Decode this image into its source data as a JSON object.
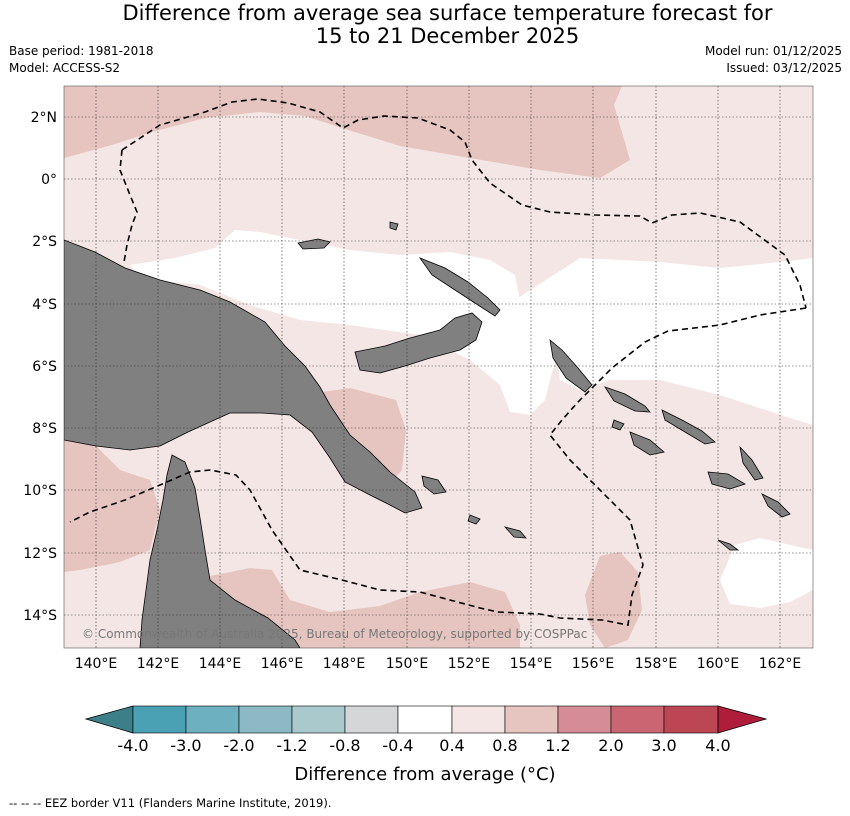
{
  "header": {
    "title_line1": "Difference from average sea surface temperature forecast for",
    "title_line2": "15 to 21 December 2025",
    "base_period": "Base period: 1981-2018",
    "model": "Model: ACCESS-S2",
    "model_run": "Model run: 01/12/2025",
    "issued": "Issued: 03/12/2025"
  },
  "map": {
    "lat_labels": [
      "2°N",
      "0°",
      "2°S",
      "4°S",
      "6°S",
      "8°S",
      "10°S",
      "12°S",
      "14°S"
    ],
    "lon_labels": [
      "140°E",
      "142°E",
      "144°E",
      "146°E",
      "148°E",
      "150°E",
      "152°E",
      "154°E",
      "156°E",
      "158°E",
      "160°E",
      "162°E"
    ],
    "copyright": "© Commonwealth of Australia 2025, Bureau of Meteorology, supported by COSPPac",
    "colors": {
      "land": "#808080",
      "anomaly_0_4_to_0_8": "#f3e6e4",
      "anomaly_0_8_to_1_2": "#e6c5c0",
      "eez_line": "#000000"
    }
  },
  "colorbar": {
    "title": "Difference from average (°C)",
    "tick_labels": [
      "-4.0",
      "-3.0",
      "-2.0",
      "-1.2",
      "-0.8",
      "-0.4",
      "0.4",
      "0.8",
      "1.2",
      "2.0",
      "3.0",
      "4.0"
    ],
    "colors": [
      "#3d7f89",
      "#4aa1b3",
      "#6db0bf",
      "#8cb9c4",
      "#a9c9cc",
      "#d5d6d7",
      "#ffffff",
      "#f3e6e4",
      "#e6c5c0",
      "#d58c96",
      "#c96672",
      "#bd4655",
      "#b01d3b"
    ]
  },
  "footer": {
    "legend": "--  --  -- EEZ border V11 (Flanders Marine Institute, 2019)."
  }
}
